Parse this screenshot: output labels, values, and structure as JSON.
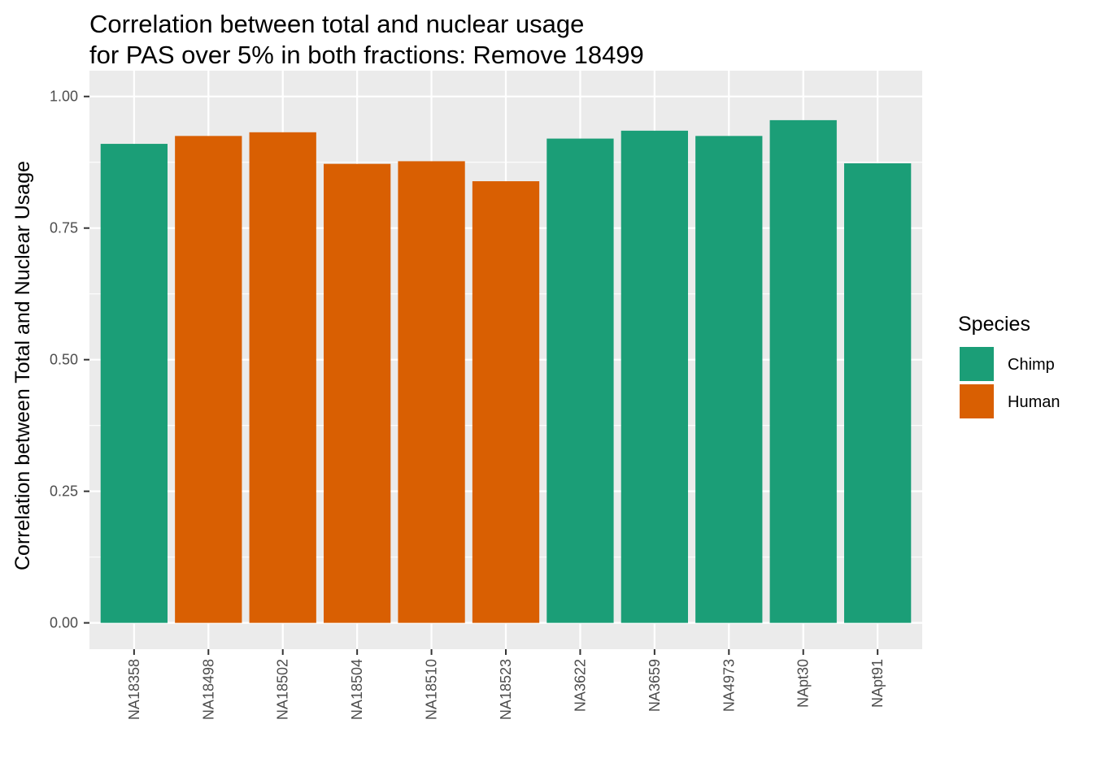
{
  "chart_data": {
    "type": "bar",
    "title_lines": [
      "Correlation between total and nuclear usage",
      "for PAS over 5% in both fractions: Remove 18499"
    ],
    "xlabel": "",
    "ylabel": "Correlation between Total and Nuclear Usage",
    "ylim": [
      -0.05,
      1.0
    ],
    "y_ticks": [
      "0.00",
      "0.25",
      "0.50",
      "0.75",
      "1.00"
    ],
    "categories": [
      "NA18358",
      "NA18498",
      "NA18502",
      "NA18504",
      "NA18510",
      "NA18523",
      "NA3622",
      "NA3659",
      "NA4973",
      "NApt30",
      "NApt91"
    ],
    "values": [
      0.91,
      0.925,
      0.932,
      0.872,
      0.877,
      0.839,
      0.92,
      0.935,
      0.925,
      0.955,
      0.873
    ],
    "species": [
      "Chimp",
      "Human",
      "Human",
      "Human",
      "Human",
      "Human",
      "Chimp",
      "Chimp",
      "Chimp",
      "Chimp",
      "Chimp"
    ],
    "grid": true,
    "legend": {
      "title": "Species",
      "position": "right",
      "entries": [
        {
          "label": "Chimp",
          "color": "#1b9e77"
        },
        {
          "label": "Human",
          "color": "#d95f02"
        }
      ]
    },
    "panel_background": "#ebebeb"
  }
}
